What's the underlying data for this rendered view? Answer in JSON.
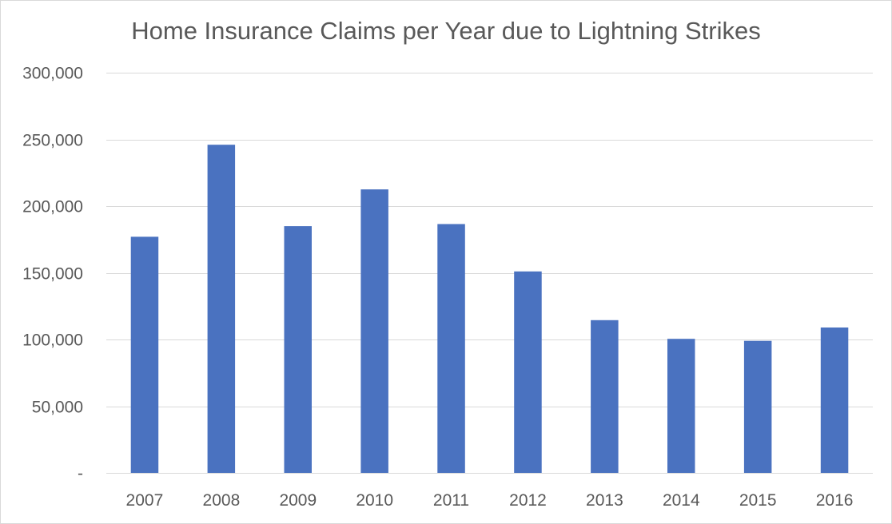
{
  "chart_data": {
    "type": "bar",
    "title": "Home Insurance Claims per Year due to Lightning Strikes",
    "xlabel": "",
    "ylabel": "",
    "categories": [
      "2007",
      "2008",
      "2009",
      "2010",
      "2011",
      "2012",
      "2013",
      "2014",
      "2015",
      "2016"
    ],
    "series": [
      {
        "values": [
          177000,
          246000,
          185000,
          212500,
          186500,
          151000,
          114500,
          100500,
          99000,
          109000
        ]
      }
    ],
    "ylim": [
      0,
      300000
    ],
    "y_ticks": [
      0,
      50000,
      100000,
      150000,
      200000,
      250000,
      300000
    ],
    "y_tick_labels": [
      "-",
      "50,000",
      "100,000",
      "150,000",
      "200,000",
      "250,000",
      "300,000"
    ],
    "grid": true,
    "legend": "none",
    "colors": {
      "bar": "#4a72c0",
      "grid": "#d9d9d9",
      "text": "#595959"
    }
  }
}
